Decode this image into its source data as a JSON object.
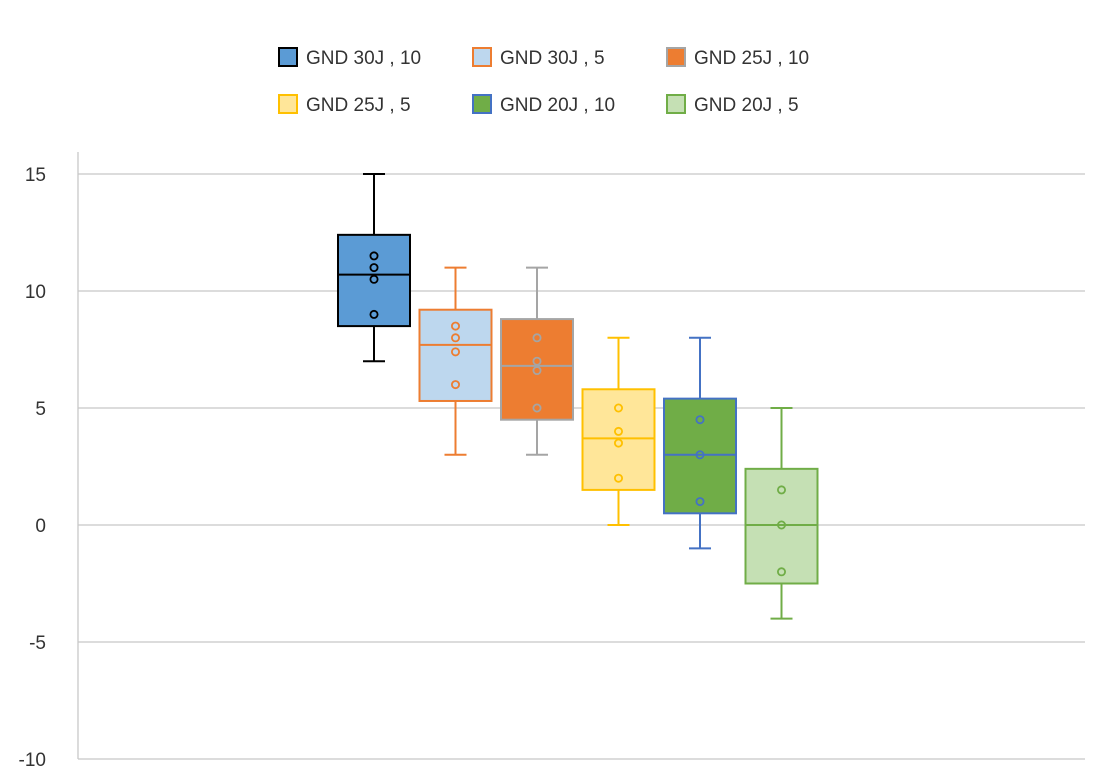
{
  "chart_data": {
    "type": "box",
    "ylim": [
      -10,
      15
    ],
    "yticks": [
      15,
      10,
      5,
      0,
      -5,
      -10
    ],
    "ytick_labels": [
      "15",
      "10",
      "5",
      "0",
      "-5",
      "-10"
    ],
    "grid": true,
    "legend_position": "top",
    "series": [
      {
        "name": "GND 30J , 10",
        "fill": "#5b9bd5",
        "stroke": "#000000",
        "min": 7,
        "q1": 8.5,
        "median": 10.7,
        "q3": 12.4,
        "max": 15,
        "points": [
          11.5,
          11,
          10.5,
          9
        ]
      },
      {
        "name": "GND 30J , 5",
        "fill": "#bdd7ee",
        "stroke": "#ed7d31",
        "min": 3,
        "q1": 5.3,
        "median": 7.7,
        "q3": 9.2,
        "max": 11,
        "points": [
          8.5,
          8,
          7.4,
          6
        ]
      },
      {
        "name": "GND 25J , 10",
        "fill": "#ed7d31",
        "stroke": "#a5a5a5",
        "min": 3,
        "q1": 4.5,
        "median": 6.8,
        "q3": 8.8,
        "max": 11,
        "points": [
          8,
          7,
          6.6,
          5
        ]
      },
      {
        "name": "GND 25J , 5",
        "fill": "#ffe699",
        "stroke": "#ffc000",
        "min": 0,
        "q1": 1.5,
        "median": 3.7,
        "q3": 5.8,
        "max": 8,
        "points": [
          5,
          4,
          3.5,
          2
        ]
      },
      {
        "name": "GND 20J , 10",
        "fill": "#70ad47",
        "stroke": "#4472c4",
        "min": -1,
        "q1": 0.5,
        "median": 3,
        "q3": 5.4,
        "max": 8,
        "points": [
          4.5,
          3,
          1
        ]
      },
      {
        "name": "GND 20J , 5",
        "fill": "#c5e0b4",
        "stroke": "#70ad47",
        "min": -4,
        "q1": -2.5,
        "median": 0,
        "q3": 2.4,
        "max": 5,
        "points": [
          1.5,
          0,
          -2
        ]
      }
    ]
  }
}
